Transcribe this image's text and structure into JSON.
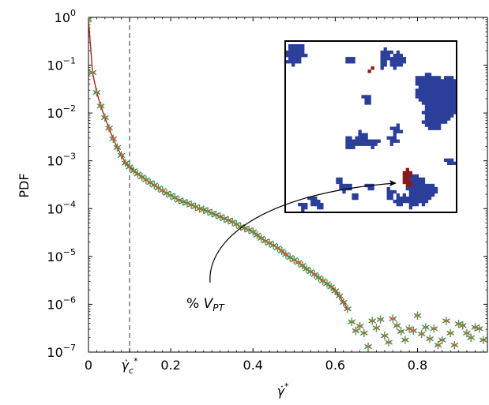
{
  "chart_data": {
    "type": "scatter",
    "title": "",
    "xlabel": "γ̇*",
    "ylabel": "PDF",
    "x_scale": "linear",
    "y_scale": "log",
    "xlim": [
      0,
      0.97
    ],
    "ylim": [
      1e-07,
      1
    ],
    "x_ticks": [
      {
        "value": 0,
        "label": "0"
      },
      {
        "value": 0.1,
        "label": "γ̇c*"
      },
      {
        "value": 0.2,
        "label": "0.2"
      },
      {
        "value": 0.4,
        "label": "0.4"
      },
      {
        "value": 0.6,
        "label": "0.6"
      },
      {
        "value": 0.8,
        "label": "0.8"
      }
    ],
    "y_ticks": [
      {
        "value": 1e-07,
        "base": "10",
        "exp": "−7"
      },
      {
        "value": 1e-06,
        "base": "10",
        "exp": "−6"
      },
      {
        "value": 1e-05,
        "base": "10",
        "exp": "−5"
      },
      {
        "value": 0.0001,
        "base": "10",
        "exp": "−4"
      },
      {
        "value": 0.001,
        "base": "10",
        "exp": "−3"
      },
      {
        "value": 0.01,
        "base": "10",
        "exp": "−2"
      },
      {
        "value": 0.1,
        "base": "10",
        "exp": "−1"
      },
      {
        "value": 1,
        "base": "10",
        "exp": "0"
      }
    ],
    "grid": false,
    "reference_line": {
      "x": 0.1,
      "style": "dashed"
    },
    "marker": "asterisk",
    "colors": {
      "marker_outer": "#2e8b57",
      "marker_inner": "#d2691e",
      "line": "#b22222",
      "region_main": "#2b3f9a",
      "region_highlight": "#8b1a1a"
    },
    "annotation": {
      "prefix": "% ",
      "var": "V",
      "sub": "PT"
    },
    "series": [
      {
        "x": [
          0,
          0.01,
          0.02,
          0.03,
          0.04,
          0.05,
          0.06,
          0.07,
          0.08,
          0.09,
          0.1,
          0.11,
          0.12,
          0.13,
          0.14,
          0.15,
          0.16,
          0.17,
          0.18,
          0.19,
          0.2,
          0.21,
          0.22,
          0.23,
          0.24,
          0.25,
          0.26,
          0.27,
          0.28,
          0.29,
          0.3,
          0.31,
          0.32,
          0.33,
          0.34,
          0.35,
          0.36,
          0.37,
          0.38,
          0.39,
          0.4,
          0.41,
          0.42,
          0.43,
          0.44,
          0.45,
          0.46,
          0.47,
          0.48,
          0.49,
          0.5,
          0.51,
          0.52,
          0.53,
          0.54,
          0.55,
          0.56,
          0.57,
          0.58,
          0.59,
          0.6,
          0.61,
          0.62,
          0.63,
          0.64,
          0.65,
          0.66,
          0.67,
          0.68,
          0.69,
          0.7,
          0.71,
          0.72,
          0.73,
          0.74,
          0.75,
          0.76,
          0.77,
          0.78,
          0.79,
          0.8,
          0.81,
          0.82,
          0.83,
          0.84,
          0.85,
          0.86,
          0.87,
          0.88,
          0.89,
          0.9,
          0.91,
          0.92,
          0.93,
          0.94,
          0.95,
          0.96
        ],
        "y": [
          0.9,
          0.07,
          0.027,
          0.014,
          0.008,
          0.0048,
          0.0029,
          0.0019,
          0.0013,
          0.0009,
          0.00075,
          0.00062,
          0.00053,
          0.00046,
          0.0004,
          0.00035,
          0.00031,
          0.00027,
          0.00024,
          0.00021,
          0.00019,
          0.00017,
          0.00015,
          0.00014,
          0.00013,
          0.00012,
          0.00011,
          0.0001,
          9.5e-05,
          8.8e-05,
          8e-05,
          7.4e-05,
          6.8e-05,
          6.2e-05,
          5.7e-05,
          5.3e-05,
          4.7e-05,
          4.2e-05,
          3.9e-05,
          3.6e-05,
          3.3e-05,
          2.8e-05,
          2.4e-05,
          2.1e-05,
          1.9e-05,
          1.7e-05,
          1.5e-05,
          1.3e-05,
          1.1e-05,
          9.5e-06,
          8.5e-06,
          7.5e-06,
          6.5e-06,
          5.5e-06,
          4.8e-06,
          4.2e-06,
          3.6e-06,
          3.1e-06,
          2.7e-06,
          2.3e-06,
          1.9e-06,
          1.5e-06,
          1.1e-06,
          8e-07,
          4.3e-07,
          2.8e-07,
          3.5e-07,
          2.5e-07,
          1.3e-07,
          4.5e-07,
          3.2e-07,
          4.8e-07,
          2.2e-07,
          1.6e-07,
          5e-07,
          3.6e-07,
          2.7e-07,
          1.8e-07,
          3.1e-07,
          2.8e-07,
          5.8e-07,
          2.4e-07,
          3.3e-07,
          1.9e-07,
          3.1e-07,
          1.4e-07,
          1.8e-07,
          4.5e-07,
          2.5e-07,
          1.4e-07,
          3.9e-07,
          3.6e-07,
          2.5e-07,
          2e-07,
          3.3e-07,
          3.1e-07,
          1.8e-07
        ]
      }
    ]
  }
}
